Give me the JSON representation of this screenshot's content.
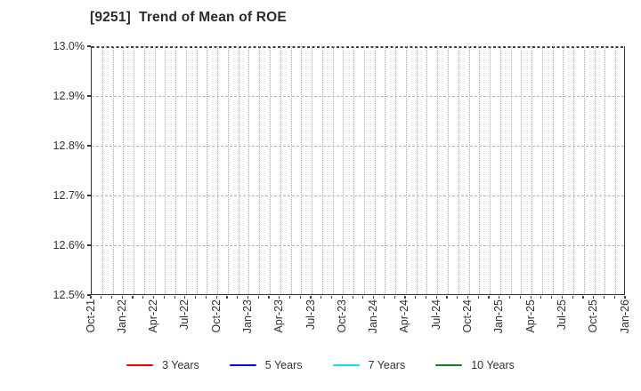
{
  "chart": {
    "title": "[9251]  Trend of Mean of ROE"
  },
  "chart_data": {
    "type": "line",
    "title": "[9251]  Trend of Mean of ROE",
    "xlabel": "",
    "ylabel": "",
    "ylim": [
      12.5,
      13.0
    ],
    "y_tick_step": 0.1,
    "y_tick_labels": [
      "13.0%",
      "12.9%",
      "12.8%",
      "12.7%",
      "12.6%",
      "12.5%"
    ],
    "x_tick_labels": [
      "Oct-21",
      "Jan-22",
      "Apr-22",
      "Jul-22",
      "Oct-22",
      "Jan-23",
      "Apr-23",
      "Jul-23",
      "Oct-23",
      "Jan-24",
      "Apr-24",
      "Jul-24",
      "Oct-24",
      "Jan-25",
      "Apr-25",
      "Jul-25",
      "Oct-25",
      "Jan-26"
    ],
    "x_months_total": 51,
    "x_label_interval_months": 3,
    "grid": true,
    "gridline_style": {
      "vertical": "dotted-monthly",
      "horizontal": "dashed-per-0.1"
    },
    "legend_position": "bottom",
    "series": [
      {
        "name": "3 Years",
        "color": "#ee0000",
        "values": []
      },
      {
        "name": "5 Years",
        "color": "#0000ee",
        "values": []
      },
      {
        "name": "7 Years",
        "color": "#00e5ee",
        "values": []
      },
      {
        "name": "10 Years",
        "color": "#128012",
        "values": []
      }
    ]
  }
}
